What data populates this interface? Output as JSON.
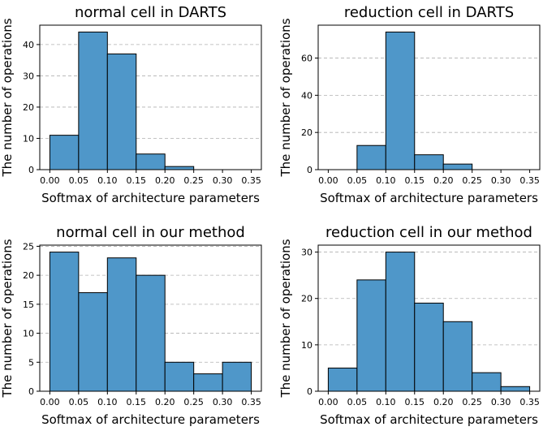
{
  "chart_data": [
    {
      "type": "bar",
      "title": "normal cell in DARTS",
      "xlabel": "Softmax of architecture parameters",
      "ylabel": "The number of operations",
      "bin_edges": [
        0.0,
        0.05,
        0.1,
        0.15,
        0.2,
        0.25,
        0.3,
        0.35
      ],
      "values": [
        11,
        44,
        37,
        5,
        1,
        0,
        0
      ],
      "xlim": [
        -0.0175,
        0.3675
      ],
      "ylim": [
        0,
        46.2
      ],
      "xticks": [
        0.0,
        0.05,
        0.1,
        0.15,
        0.2,
        0.25,
        0.3,
        0.35
      ],
      "xtick_labels": [
        "0.00",
        "0.05",
        "0.10",
        "0.15",
        "0.20",
        "0.25",
        "0.30",
        "0.35"
      ],
      "yticks": [
        0,
        10,
        20,
        30,
        40
      ],
      "ytick_labels": [
        "0",
        "10",
        "20",
        "30",
        "40"
      ],
      "grid": "y dashed",
      "color": "#4f97c9"
    },
    {
      "type": "bar",
      "title": "reduction cell in DARTS",
      "xlabel": "Softmax of architecture parameters",
      "ylabel": "The number of operations",
      "bin_edges": [
        0.0,
        0.05,
        0.1,
        0.15,
        0.2,
        0.25,
        0.3,
        0.35
      ],
      "values": [
        0,
        13,
        74,
        8,
        3,
        0,
        0
      ],
      "xlim": [
        -0.0175,
        0.3675
      ],
      "ylim": [
        0,
        77.7
      ],
      "xticks": [
        0.0,
        0.05,
        0.1,
        0.15,
        0.2,
        0.25,
        0.3,
        0.35
      ],
      "xtick_labels": [
        "0.00",
        "0.05",
        "0.10",
        "0.15",
        "0.20",
        "0.25",
        "0.30",
        "0.35"
      ],
      "yticks": [
        0,
        20,
        40,
        60
      ],
      "ytick_labels": [
        "0",
        "20",
        "40",
        "60"
      ],
      "grid": "y dashed",
      "color": "#4f97c9"
    },
    {
      "type": "bar",
      "title": "normal cell in our method",
      "xlabel": "Softmax of architecture parameters",
      "ylabel": "The number of operations",
      "bin_edges": [
        0.0,
        0.05,
        0.1,
        0.15,
        0.2,
        0.25,
        0.3,
        0.35
      ],
      "values": [
        24,
        17,
        23,
        20,
        5,
        3,
        5
      ],
      "xlim": [
        -0.0175,
        0.3675
      ],
      "ylim": [
        0,
        25.2
      ],
      "xticks": [
        0.0,
        0.05,
        0.1,
        0.15,
        0.2,
        0.25,
        0.3,
        0.35
      ],
      "xtick_labels": [
        "0.00",
        "0.05",
        "0.10",
        "0.15",
        "0.20",
        "0.25",
        "0.30",
        "0.35"
      ],
      "yticks": [
        0,
        5,
        10,
        15,
        20,
        25
      ],
      "ytick_labels": [
        "0",
        "5",
        "10",
        "15",
        "20",
        "25"
      ],
      "grid": "y dashed",
      "color": "#4f97c9"
    },
    {
      "type": "bar",
      "title": "reduction cell in our method",
      "xlabel": "Softmax of architecture parameters",
      "ylabel": "The number of operations",
      "bin_edges": [
        0.0,
        0.05,
        0.1,
        0.15,
        0.2,
        0.25,
        0.3,
        0.35
      ],
      "values": [
        5,
        24,
        30,
        19,
        15,
        4,
        1
      ],
      "xlim": [
        -0.0175,
        0.3675
      ],
      "ylim": [
        0,
        31.5
      ],
      "xticks": [
        0.0,
        0.05,
        0.1,
        0.15,
        0.2,
        0.25,
        0.3,
        0.35
      ],
      "xtick_labels": [
        "0.00",
        "0.05",
        "0.10",
        "0.15",
        "0.20",
        "0.25",
        "0.30",
        "0.35"
      ],
      "yticks": [
        0,
        10,
        20,
        30
      ],
      "ytick_labels": [
        "0",
        "10",
        "20",
        "30"
      ],
      "grid": "y dashed",
      "color": "#4f97c9"
    }
  ]
}
